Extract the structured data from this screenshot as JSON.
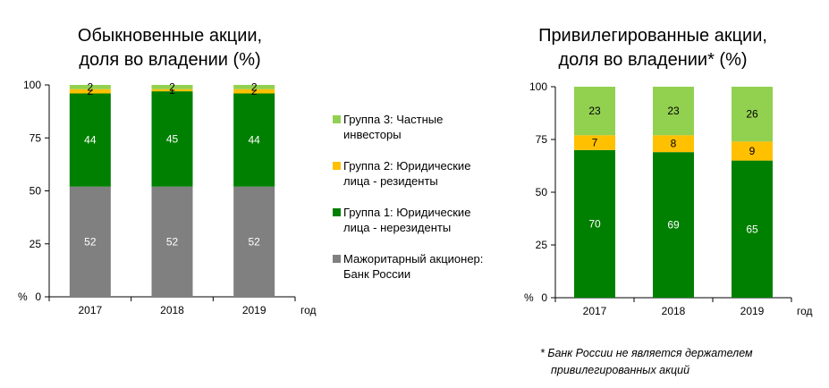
{
  "colors": {
    "group3": "#92D050",
    "group2": "#FFC000",
    "group1": "#008000",
    "majority": "#808080"
  },
  "legend": [
    {
      "key": "group3",
      "label_line1": "Группа 3: Частные",
      "label_line2": "инвесторы"
    },
    {
      "key": "group2",
      "label_line1": "Группа 2: Юридические",
      "label_line2": "лица - резиденты"
    },
    {
      "key": "group1",
      "label_line1": "Группа 1: Юридические",
      "label_line2": "лица - нерезиденты"
    },
    {
      "key": "majority",
      "label_line1": "Мажоритарный акционер:",
      "label_line2": "Банк России"
    }
  ],
  "footnote": {
    "line1": "* Банк России не является держателем",
    "line2": "привилегированных акций"
  },
  "chart_data": [
    {
      "type": "bar",
      "stacked": true,
      "title_line1": "Обыкновенные акции,",
      "title_line2": "доля во владении  (%)",
      "categories": [
        "2017",
        "2018",
        "2019"
      ],
      "xlabel": "год",
      "ylabel": "%",
      "ylim": [
        0,
        100
      ],
      "yticks": [
        0,
        25,
        50,
        75,
        100
      ],
      "series": [
        {
          "key": "majority",
          "values": [
            52,
            52,
            52
          ]
        },
        {
          "key": "group1",
          "values": [
            44,
            45,
            44
          ]
        },
        {
          "key": "group2",
          "values": [
            2,
            1,
            2
          ]
        },
        {
          "key": "group3",
          "values": [
            2,
            2,
            2
          ]
        }
      ]
    },
    {
      "type": "bar",
      "stacked": true,
      "title_line1": "Привилегированные акции,",
      "title_line2": "доля во владении* (%)",
      "categories": [
        "2017",
        "2018",
        "2019"
      ],
      "xlabel": "год",
      "ylabel": "%",
      "ylim": [
        0,
        100
      ],
      "yticks": [
        0,
        25,
        50,
        75,
        100
      ],
      "series": [
        {
          "key": "group1",
          "values": [
            70,
            69,
            65
          ]
        },
        {
          "key": "group2",
          "values": [
            7,
            8,
            9
          ]
        },
        {
          "key": "group3",
          "values": [
            23,
            23,
            26
          ]
        }
      ]
    }
  ]
}
